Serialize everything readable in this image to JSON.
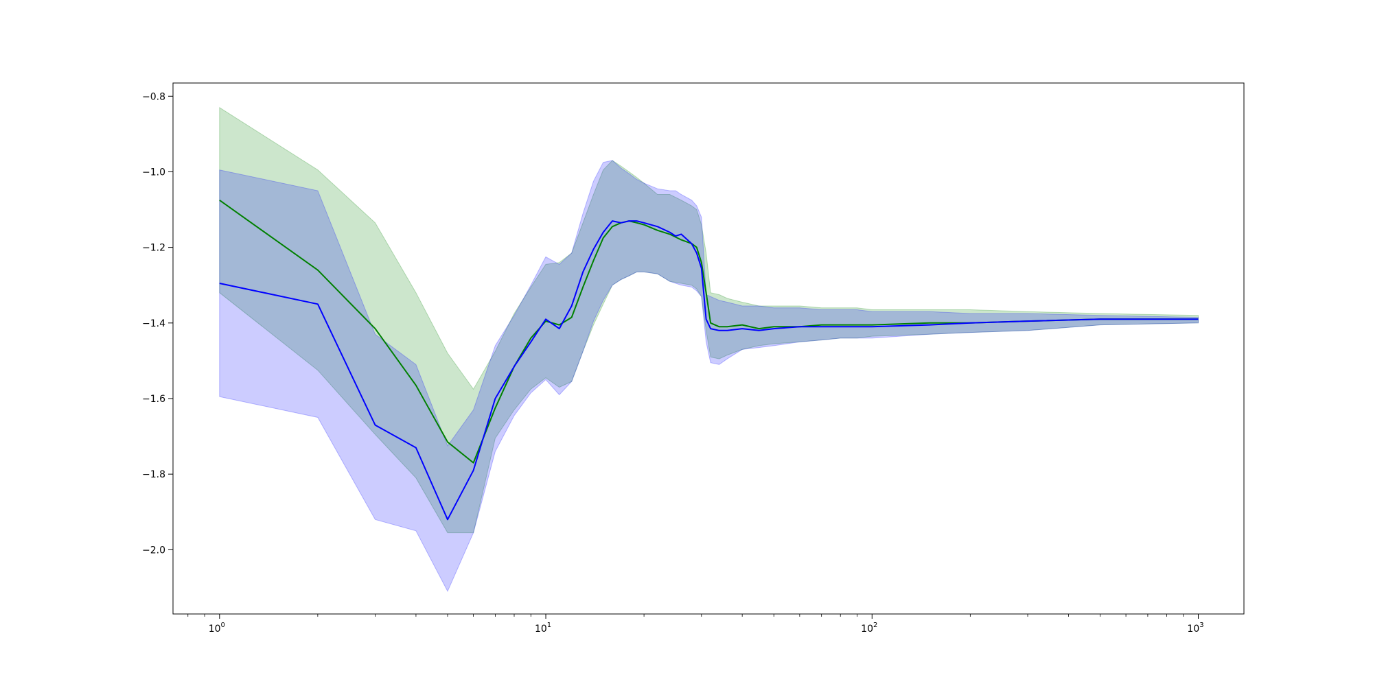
{
  "chart_data": {
    "type": "line",
    "title": "",
    "xlabel": "",
    "ylabel": "",
    "x_scale": "log",
    "xlim": [
      0.72,
      1380
    ],
    "ylim": [
      -2.17,
      -0.765
    ],
    "grid": false,
    "legend": "none",
    "x_ticks": [
      {
        "value": 1,
        "base": "10",
        "exp": "0"
      },
      {
        "value": 10,
        "base": "10",
        "exp": "1"
      },
      {
        "value": 100,
        "base": "10",
        "exp": "2"
      },
      {
        "value": 1000,
        "base": "10",
        "exp": "3"
      }
    ],
    "y_ticks": [
      {
        "value": -0.8,
        "label": "−0.8"
      },
      {
        "value": -1.0,
        "label": "−1.0"
      },
      {
        "value": -1.2,
        "label": "−1.2"
      },
      {
        "value": -1.4,
        "label": "−1.4"
      },
      {
        "value": -1.6,
        "label": "−1.6"
      },
      {
        "value": -1.8,
        "label": "−1.8"
      },
      {
        "value": -2.0,
        "label": "−2.0"
      }
    ],
    "series": [
      {
        "color": "#008000",
        "band_color": "#008000",
        "band_opacity": 0.2,
        "x": [
          1,
          2,
          3,
          4,
          5,
          6,
          7,
          8,
          9,
          10,
          11,
          12,
          13,
          14,
          15,
          16,
          17,
          18,
          19,
          20,
          22,
          24,
          26,
          28,
          29,
          30,
          31,
          32,
          34,
          36,
          40,
          45,
          50,
          60,
          70,
          80,
          90,
          100,
          150,
          200,
          300,
          500,
          1000
        ],
        "y": [
          -1.075,
          -1.26,
          -1.415,
          -1.565,
          -1.715,
          -1.77,
          -1.625,
          -1.515,
          -1.44,
          -1.395,
          -1.405,
          -1.385,
          -1.305,
          -1.235,
          -1.175,
          -1.145,
          -1.135,
          -1.13,
          -1.135,
          -1.14,
          -1.155,
          -1.165,
          -1.18,
          -1.19,
          -1.2,
          -1.24,
          -1.32,
          -1.4,
          -1.41,
          -1.41,
          -1.405,
          -1.415,
          -1.41,
          -1.41,
          -1.405,
          -1.405,
          -1.405,
          -1.405,
          -1.4,
          -1.4,
          -1.395,
          -1.39,
          -1.39
        ],
        "lower": [
          -1.32,
          -1.525,
          -1.695,
          -1.81,
          -1.955,
          -1.955,
          -1.705,
          -1.63,
          -1.575,
          -1.545,
          -1.57,
          -1.555,
          -1.475,
          -1.405,
          -1.35,
          -1.3,
          -1.285,
          -1.275,
          -1.265,
          -1.265,
          -1.27,
          -1.29,
          -1.295,
          -1.3,
          -1.31,
          -1.33,
          -1.42,
          -1.49,
          -1.495,
          -1.485,
          -1.47,
          -1.46,
          -1.455,
          -1.45,
          -1.445,
          -1.44,
          -1.44,
          -1.435,
          -1.43,
          -1.425,
          -1.42,
          -1.405,
          -1.4
        ],
        "upper": [
          -0.83,
          -0.995,
          -1.135,
          -1.32,
          -1.48,
          -1.575,
          -1.475,
          -1.375,
          -1.305,
          -1.245,
          -1.24,
          -1.215,
          -1.135,
          -1.06,
          -0.995,
          -0.97,
          -0.985,
          -1.0,
          -1.015,
          -1.03,
          -1.06,
          -1.06,
          -1.075,
          -1.09,
          -1.1,
          -1.14,
          -1.215,
          -1.32,
          -1.325,
          -1.335,
          -1.345,
          -1.355,
          -1.355,
          -1.355,
          -1.36,
          -1.36,
          -1.36,
          -1.365,
          -1.365,
          -1.365,
          -1.37,
          -1.375,
          -1.38
        ]
      },
      {
        "color": "#0000ff",
        "band_color": "#0000ff",
        "band_opacity": 0.2,
        "x": [
          1,
          2,
          3,
          4,
          5,
          6,
          7,
          8,
          9,
          10,
          11,
          12,
          13,
          14,
          15,
          16,
          17,
          18,
          19,
          20,
          22,
          24,
          25,
          26,
          28,
          29,
          30,
          31,
          32,
          34,
          36,
          40,
          45,
          50,
          60,
          70,
          80,
          90,
          100,
          150,
          200,
          300,
          500,
          1000
        ],
        "y": [
          -1.295,
          -1.35,
          -1.67,
          -1.73,
          -1.92,
          -1.79,
          -1.6,
          -1.515,
          -1.45,
          -1.39,
          -1.415,
          -1.355,
          -1.265,
          -1.205,
          -1.16,
          -1.13,
          -1.135,
          -1.13,
          -1.13,
          -1.135,
          -1.145,
          -1.16,
          -1.17,
          -1.165,
          -1.19,
          -1.215,
          -1.255,
          -1.39,
          -1.415,
          -1.42,
          -1.42,
          -1.415,
          -1.42,
          -1.415,
          -1.41,
          -1.41,
          -1.41,
          -1.41,
          -1.41,
          -1.405,
          -1.4,
          -1.395,
          -1.39,
          -1.39
        ],
        "lower": [
          -1.595,
          -1.65,
          -1.92,
          -1.95,
          -2.11,
          -1.955,
          -1.74,
          -1.645,
          -1.585,
          -1.55,
          -1.59,
          -1.555,
          -1.475,
          -1.395,
          -1.34,
          -1.3,
          -1.285,
          -1.275,
          -1.265,
          -1.265,
          -1.27,
          -1.29,
          -1.295,
          -1.3,
          -1.305,
          -1.315,
          -1.33,
          -1.45,
          -1.505,
          -1.51,
          -1.495,
          -1.47,
          -1.465,
          -1.46,
          -1.45,
          -1.445,
          -1.44,
          -1.44,
          -1.44,
          -1.43,
          -1.425,
          -1.42,
          -1.405,
          -1.4
        ],
        "upper": [
          -0.995,
          -1.05,
          -1.43,
          -1.51,
          -1.725,
          -1.63,
          -1.46,
          -1.38,
          -1.3,
          -1.225,
          -1.245,
          -1.215,
          -1.11,
          -1.025,
          -0.975,
          -0.97,
          -0.99,
          -1.005,
          -1.02,
          -1.03,
          -1.045,
          -1.05,
          -1.05,
          -1.06,
          -1.075,
          -1.09,
          -1.12,
          -1.325,
          -1.33,
          -1.34,
          -1.345,
          -1.355,
          -1.355,
          -1.36,
          -1.36,
          -1.365,
          -1.365,
          -1.365,
          -1.37,
          -1.37,
          -1.375,
          -1.375,
          -1.38,
          -1.385
        ]
      }
    ]
  }
}
